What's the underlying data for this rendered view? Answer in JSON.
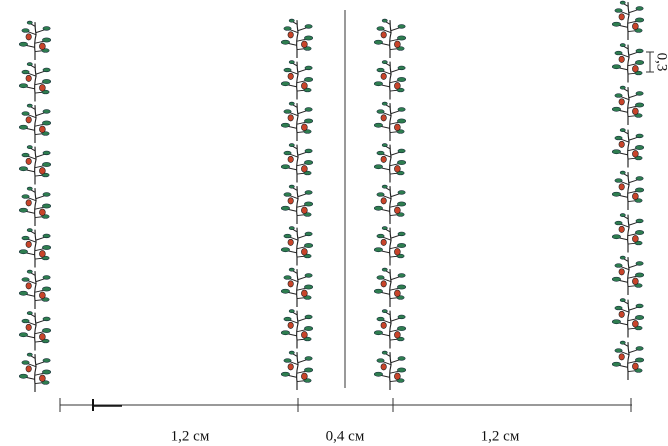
{
  "bottom_scale": [
    "1,2 см",
    "0,4 см",
    "1,2 см"
  ],
  "plant_spacing": "0,3"
}
